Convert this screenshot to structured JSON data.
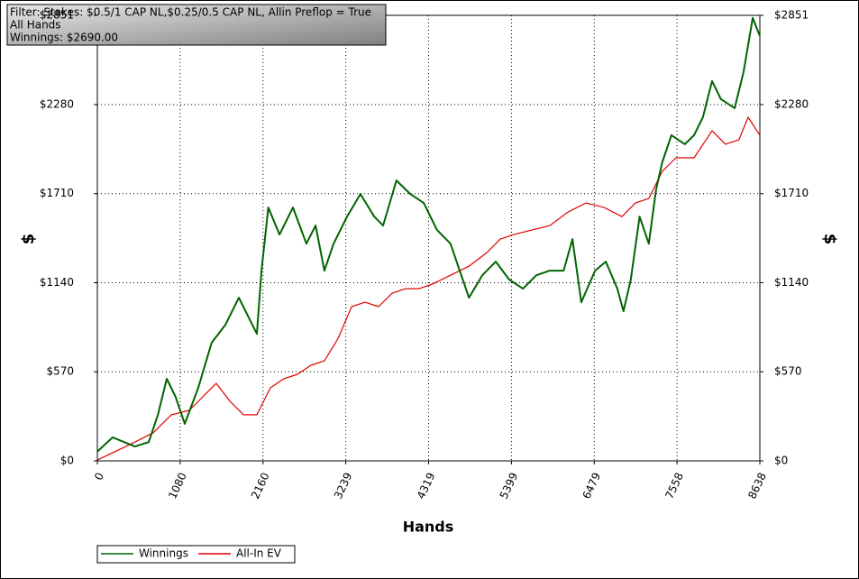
{
  "chart_data": {
    "type": "line",
    "annotations": [
      "Filter: Stakes: $0.5/1 CAP NL,$0.25/0.5 CAP NL, Allin Preflop = True",
      "All Hands",
      "Winnings: $2690.00"
    ],
    "x_label": "Hands",
    "y_label": "$",
    "xlim": [
      0,
      8638
    ],
    "xticks": [
      0,
      1080,
      2160,
      3239,
      4319,
      5399,
      6479,
      7558,
      8638
    ],
    "ylim": [
      0,
      2851
    ],
    "yticks": [
      {
        "value": 0,
        "label": "$0"
      },
      {
        "value": 570,
        "label": "$570"
      },
      {
        "value": 1140,
        "label": "$1140"
      },
      {
        "value": 1710,
        "label": "$1710"
      },
      {
        "value": 2280,
        "label": "$2280"
      },
      {
        "value": 2851,
        "label": "$2851"
      }
    ],
    "grid": true,
    "legend": "bottom-left",
    "series": [
      {
        "name": "Winnings",
        "color": "#006400",
        "x": [
          0,
          200,
          490,
          670,
          790,
          905,
          1020,
          1140,
          1315,
          1490,
          1670,
          1845,
          2020,
          2080,
          2140,
          2230,
          2375,
          2550,
          2725,
          2845,
          2960,
          3080,
          3255,
          3430,
          3610,
          3725,
          3900,
          4080,
          4255,
          4430,
          4605,
          4725,
          4845,
          5020,
          5195,
          5370,
          5550,
          5725,
          5900,
          6080,
          6195,
          6310,
          6490,
          6630,
          6780,
          6860,
          6955,
          7070,
          7190,
          7285,
          7365,
          7485,
          7660,
          7780,
          7895,
          8015,
          8130,
          8310,
          8425,
          8545,
          8638
        ],
        "values": [
          60,
          150,
          92,
          120,
          295,
          525,
          410,
          237,
          467,
          756,
          871,
          1044,
          871,
          814,
          1217,
          1621,
          1448,
          1621,
          1390,
          1506,
          1217,
          1390,
          1563,
          1708,
          1563,
          1506,
          1794,
          1708,
          1650,
          1477,
          1390,
          1217,
          1044,
          1188,
          1275,
          1160,
          1102,
          1188,
          1217,
          1217,
          1419,
          1015,
          1217,
          1275,
          1102,
          958,
          1160,
          1563,
          1390,
          1737,
          1910,
          2084,
          2026,
          2084,
          2199,
          2430,
          2315,
          2257,
          2488,
          2834,
          2719
        ]
      },
      {
        "name": "All-In EV",
        "color": "#e00000",
        "x": [
          0,
          490,
          730,
          965,
          1200,
          1375,
          1550,
          1730,
          1905,
          2080,
          2255,
          2430,
          2610,
          2785,
          2960,
          3140,
          3315,
          3490,
          3665,
          3845,
          4020,
          4195,
          4370,
          4605,
          4845,
          5080,
          5255,
          5430,
          5665,
          5900,
          6135,
          6370,
          6610,
          6840,
          7015,
          7190,
          7365,
          7545,
          7780,
          8015,
          8190,
          8365,
          8485,
          8638
        ],
        "values": [
          5,
          120,
          180,
          295,
          323,
          410,
          496,
          381,
          295,
          295,
          467,
          525,
          554,
          612,
          640,
          785,
          987,
          1015,
          987,
          1073,
          1102,
          1102,
          1131,
          1188,
          1246,
          1333,
          1419,
          1448,
          1477,
          1506,
          1592,
          1650,
          1621,
          1563,
          1650,
          1679,
          1852,
          1939,
          1939,
          2113,
          2026,
          2055,
          2199,
          2084
        ]
      }
    ]
  }
}
